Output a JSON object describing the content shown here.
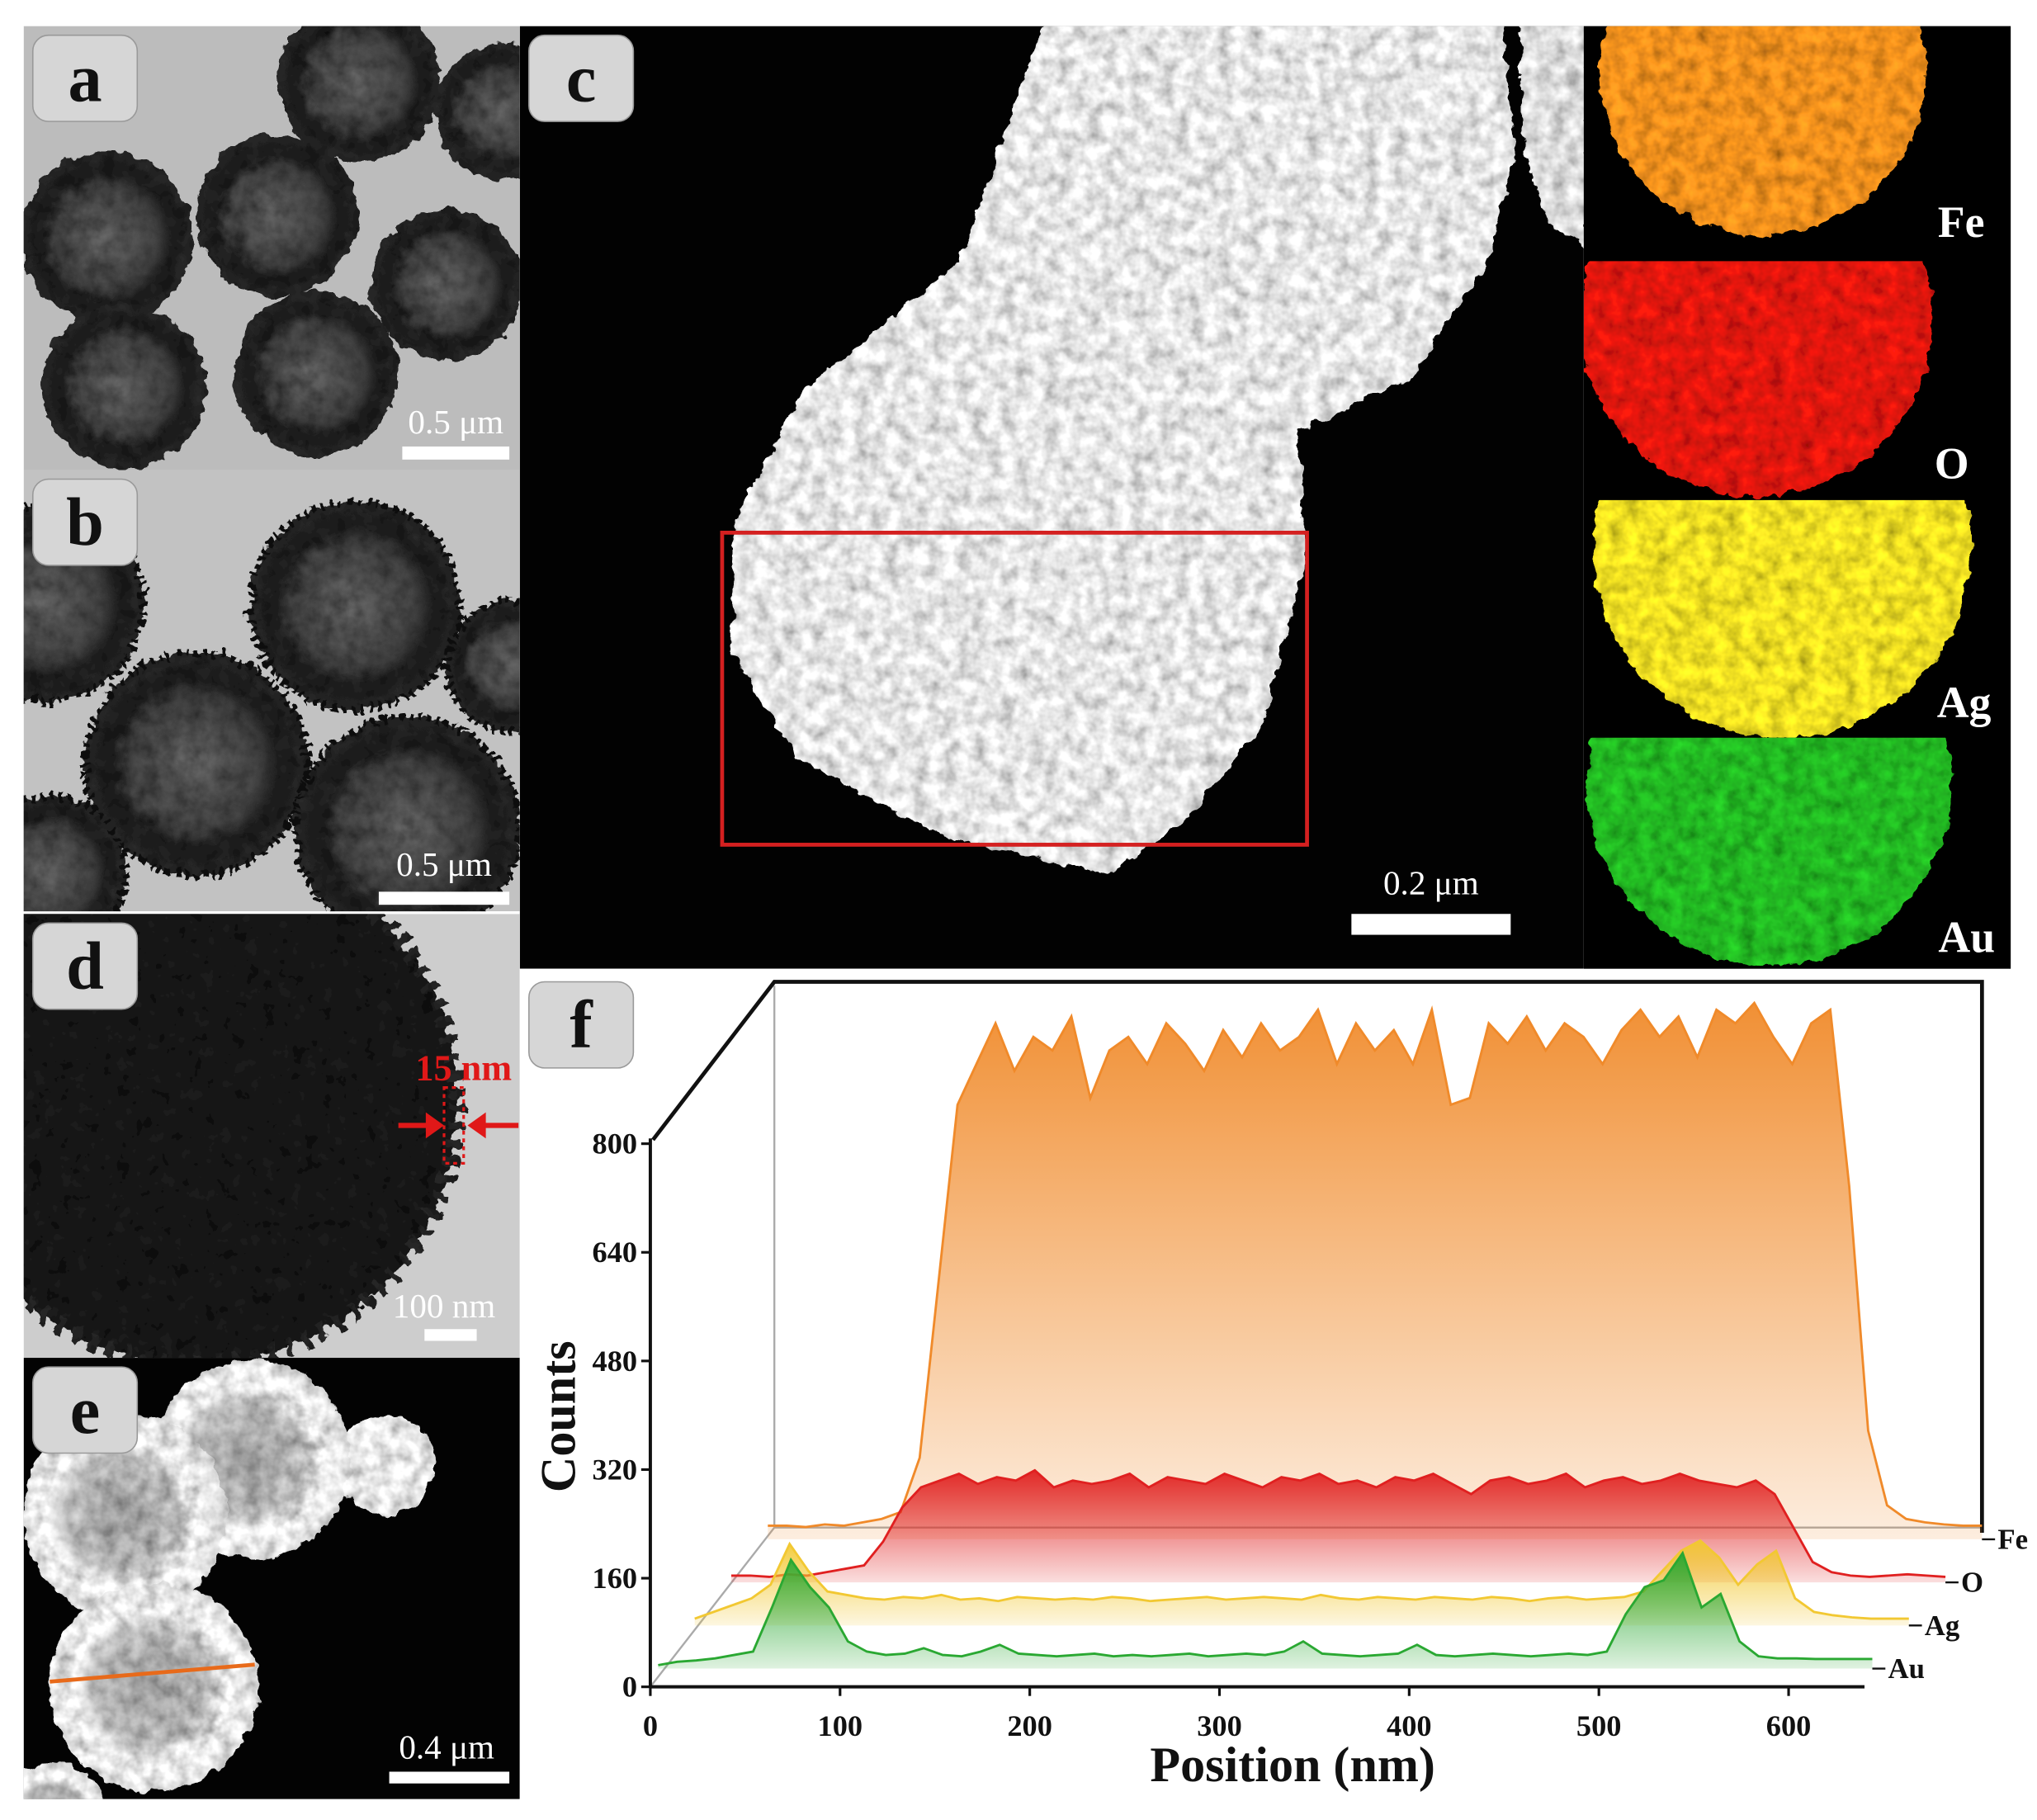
{
  "panels": {
    "a": {
      "label": "a",
      "scale_bar": "0.5 μm"
    },
    "b": {
      "label": "b",
      "scale_bar": "0.5 μm"
    },
    "c": {
      "label": "c",
      "scale_bar": "0.2 μm",
      "maps": [
        "Fe",
        "O",
        "Ag",
        "Au"
      ]
    },
    "d": {
      "label": "d",
      "scale_bar": "100 nm",
      "annotation": "15 nm"
    },
    "e": {
      "label": "e",
      "scale_bar": "0.4 μm"
    },
    "f": {
      "label": "f"
    }
  },
  "chart_data": {
    "type": "waterfall",
    "x_label": "Position (nm)",
    "y_label": "Counts",
    "x": [
      0,
      10,
      20,
      30,
      40,
      50,
      60,
      70,
      80,
      90,
      100,
      110,
      120,
      130,
      140,
      150,
      160,
      170,
      180,
      190,
      200,
      210,
      220,
      230,
      240,
      250,
      260,
      270,
      280,
      290,
      300,
      310,
      320,
      330,
      340,
      350,
      360,
      370,
      380,
      390,
      400,
      410,
      420,
      430,
      440,
      450,
      460,
      470,
      480,
      490,
      500,
      510,
      520,
      530,
      540,
      550,
      560,
      570,
      580,
      590,
      600,
      610,
      620,
      630,
      640
    ],
    "xlim": [
      0,
      640
    ],
    "ylim": [
      0,
      800
    ],
    "xticks": [
      0,
      100,
      200,
      300,
      400,
      500,
      600
    ],
    "yticks": [
      0,
      160,
      320,
      480,
      640,
      800
    ],
    "series": [
      {
        "name": "Fe",
        "color": "#f08a2a",
        "values": [
          20,
          20,
          18,
          22,
          20,
          25,
          30,
          40,
          120,
          380,
          640,
          700,
          760,
          690,
          740,
          720,
          770,
          650,
          720,
          740,
          700,
          760,
          730,
          690,
          750,
          710,
          760,
          720,
          740,
          780,
          700,
          760,
          720,
          750,
          700,
          780,
          640,
          650,
          760,
          730,
          770,
          720,
          760,
          740,
          700,
          750,
          780,
          740,
          770,
          710,
          780,
          760,
          790,
          740,
          700,
          760,
          780,
          520,
          160,
          50,
          30,
          25,
          22,
          20,
          20
        ]
      },
      {
        "name": "O",
        "color": "#e02020",
        "values": [
          10,
          10,
          8,
          12,
          10,
          15,
          20,
          25,
          60,
          110,
          140,
          150,
          160,
          145,
          155,
          150,
          165,
          140,
          150,
          145,
          150,
          160,
          140,
          155,
          150,
          145,
          160,
          150,
          140,
          155,
          150,
          160,
          145,
          150,
          140,
          155,
          150,
          160,
          145,
          130,
          150,
          155,
          145,
          150,
          160,
          140,
          150,
          155,
          145,
          150,
          160,
          150,
          145,
          140,
          150,
          130,
          80,
          30,
          15,
          10,
          8,
          10,
          12,
          10,
          8
        ]
      },
      {
        "name": "Ag",
        "color": "#f2c832",
        "values": [
          10,
          20,
          30,
          40,
          60,
          120,
          80,
          50,
          45,
          40,
          38,
          42,
          40,
          45,
          38,
          40,
          36,
          42,
          40,
          38,
          40,
          38,
          42,
          40,
          36,
          38,
          40,
          42,
          38,
          40,
          42,
          40,
          38,
          45,
          40,
          38,
          42,
          40,
          38,
          42,
          40,
          38,
          42,
          40,
          36,
          40,
          42,
          38,
          40,
          42,
          50,
          80,
          110,
          125,
          100,
          60,
          90,
          110,
          40,
          20,
          15,
          12,
          10,
          10,
          10
        ]
      },
      {
        "name": "Au",
        "color": "#2aa832",
        "values": [
          5,
          10,
          12,
          15,
          20,
          25,
          90,
          160,
          120,
          90,
          40,
          25,
          20,
          22,
          30,
          20,
          18,
          25,
          35,
          22,
          20,
          18,
          20,
          22,
          18,
          20,
          18,
          20,
          22,
          18,
          20,
          22,
          20,
          25,
          40,
          22,
          20,
          18,
          20,
          22,
          35,
          20,
          18,
          20,
          22,
          20,
          18,
          20,
          22,
          20,
          25,
          80,
          120,
          130,
          170,
          90,
          110,
          40,
          18,
          15,
          15,
          14,
          14,
          14,
          14
        ]
      }
    ]
  }
}
